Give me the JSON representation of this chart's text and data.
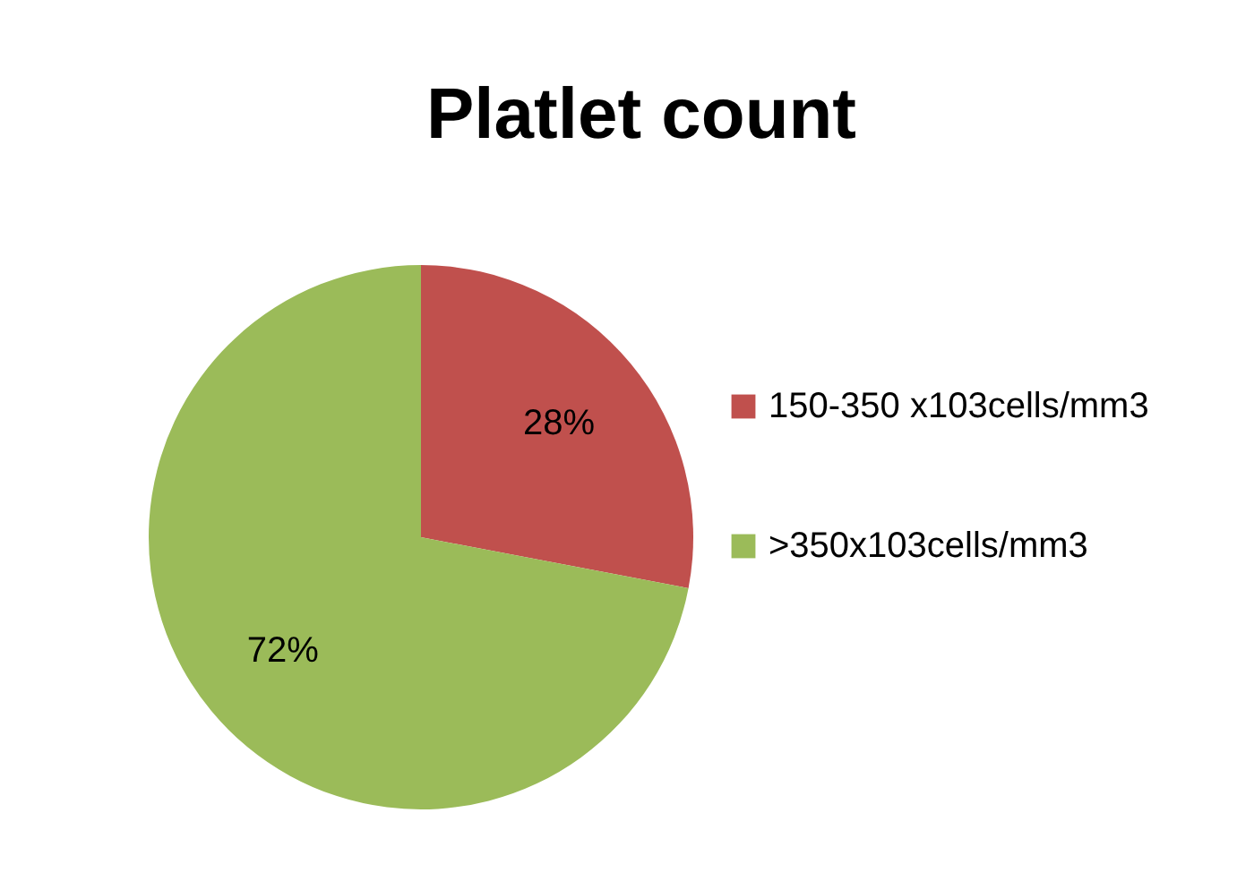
{
  "chart_data": {
    "type": "pie",
    "title": "Platlet count",
    "categories": [
      "150-350 x103cells/mm3",
      ">350x103cells/mm3"
    ],
    "values": [
      28,
      72
    ],
    "colors": [
      "#c0504d",
      "#9bbb59"
    ],
    "value_labels": [
      "28%",
      "72%"
    ],
    "legend": "right"
  }
}
